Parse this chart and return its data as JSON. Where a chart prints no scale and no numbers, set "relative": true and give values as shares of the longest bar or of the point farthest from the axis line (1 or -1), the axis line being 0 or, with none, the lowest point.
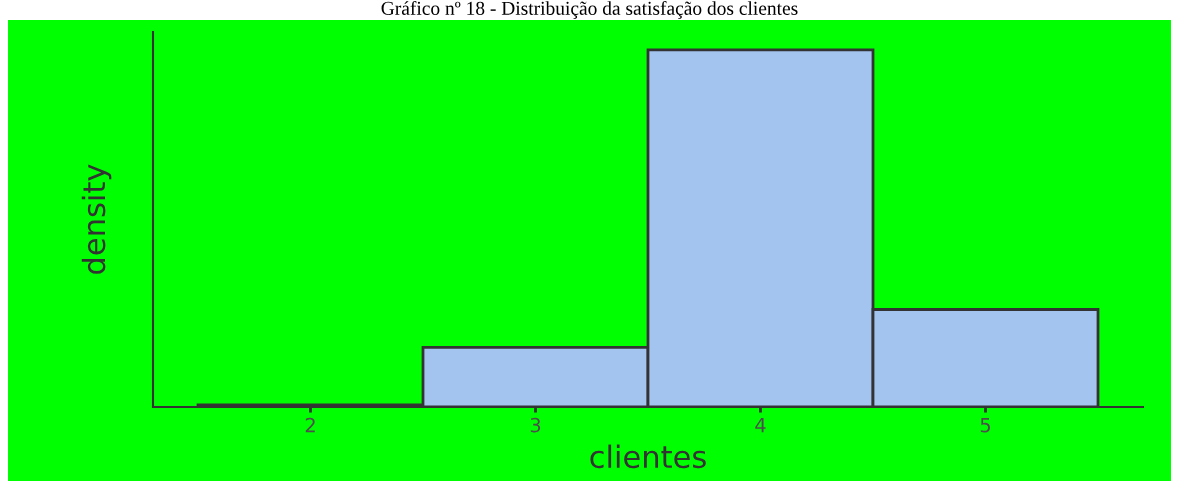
{
  "chart_data": {
    "type": "bar",
    "title": "Gráfico nº 18 - Distribuição da satisfação dos clientes",
    "xlabel": "clientes",
    "ylabel": "density",
    "categories": [
      "2",
      "3",
      "4",
      "5"
    ],
    "values": [
      0.006,
      0.167,
      1,
      0.273
    ],
    "relative": true,
    "color": "#a4c4f0",
    "grid": false,
    "legend": false
  }
}
